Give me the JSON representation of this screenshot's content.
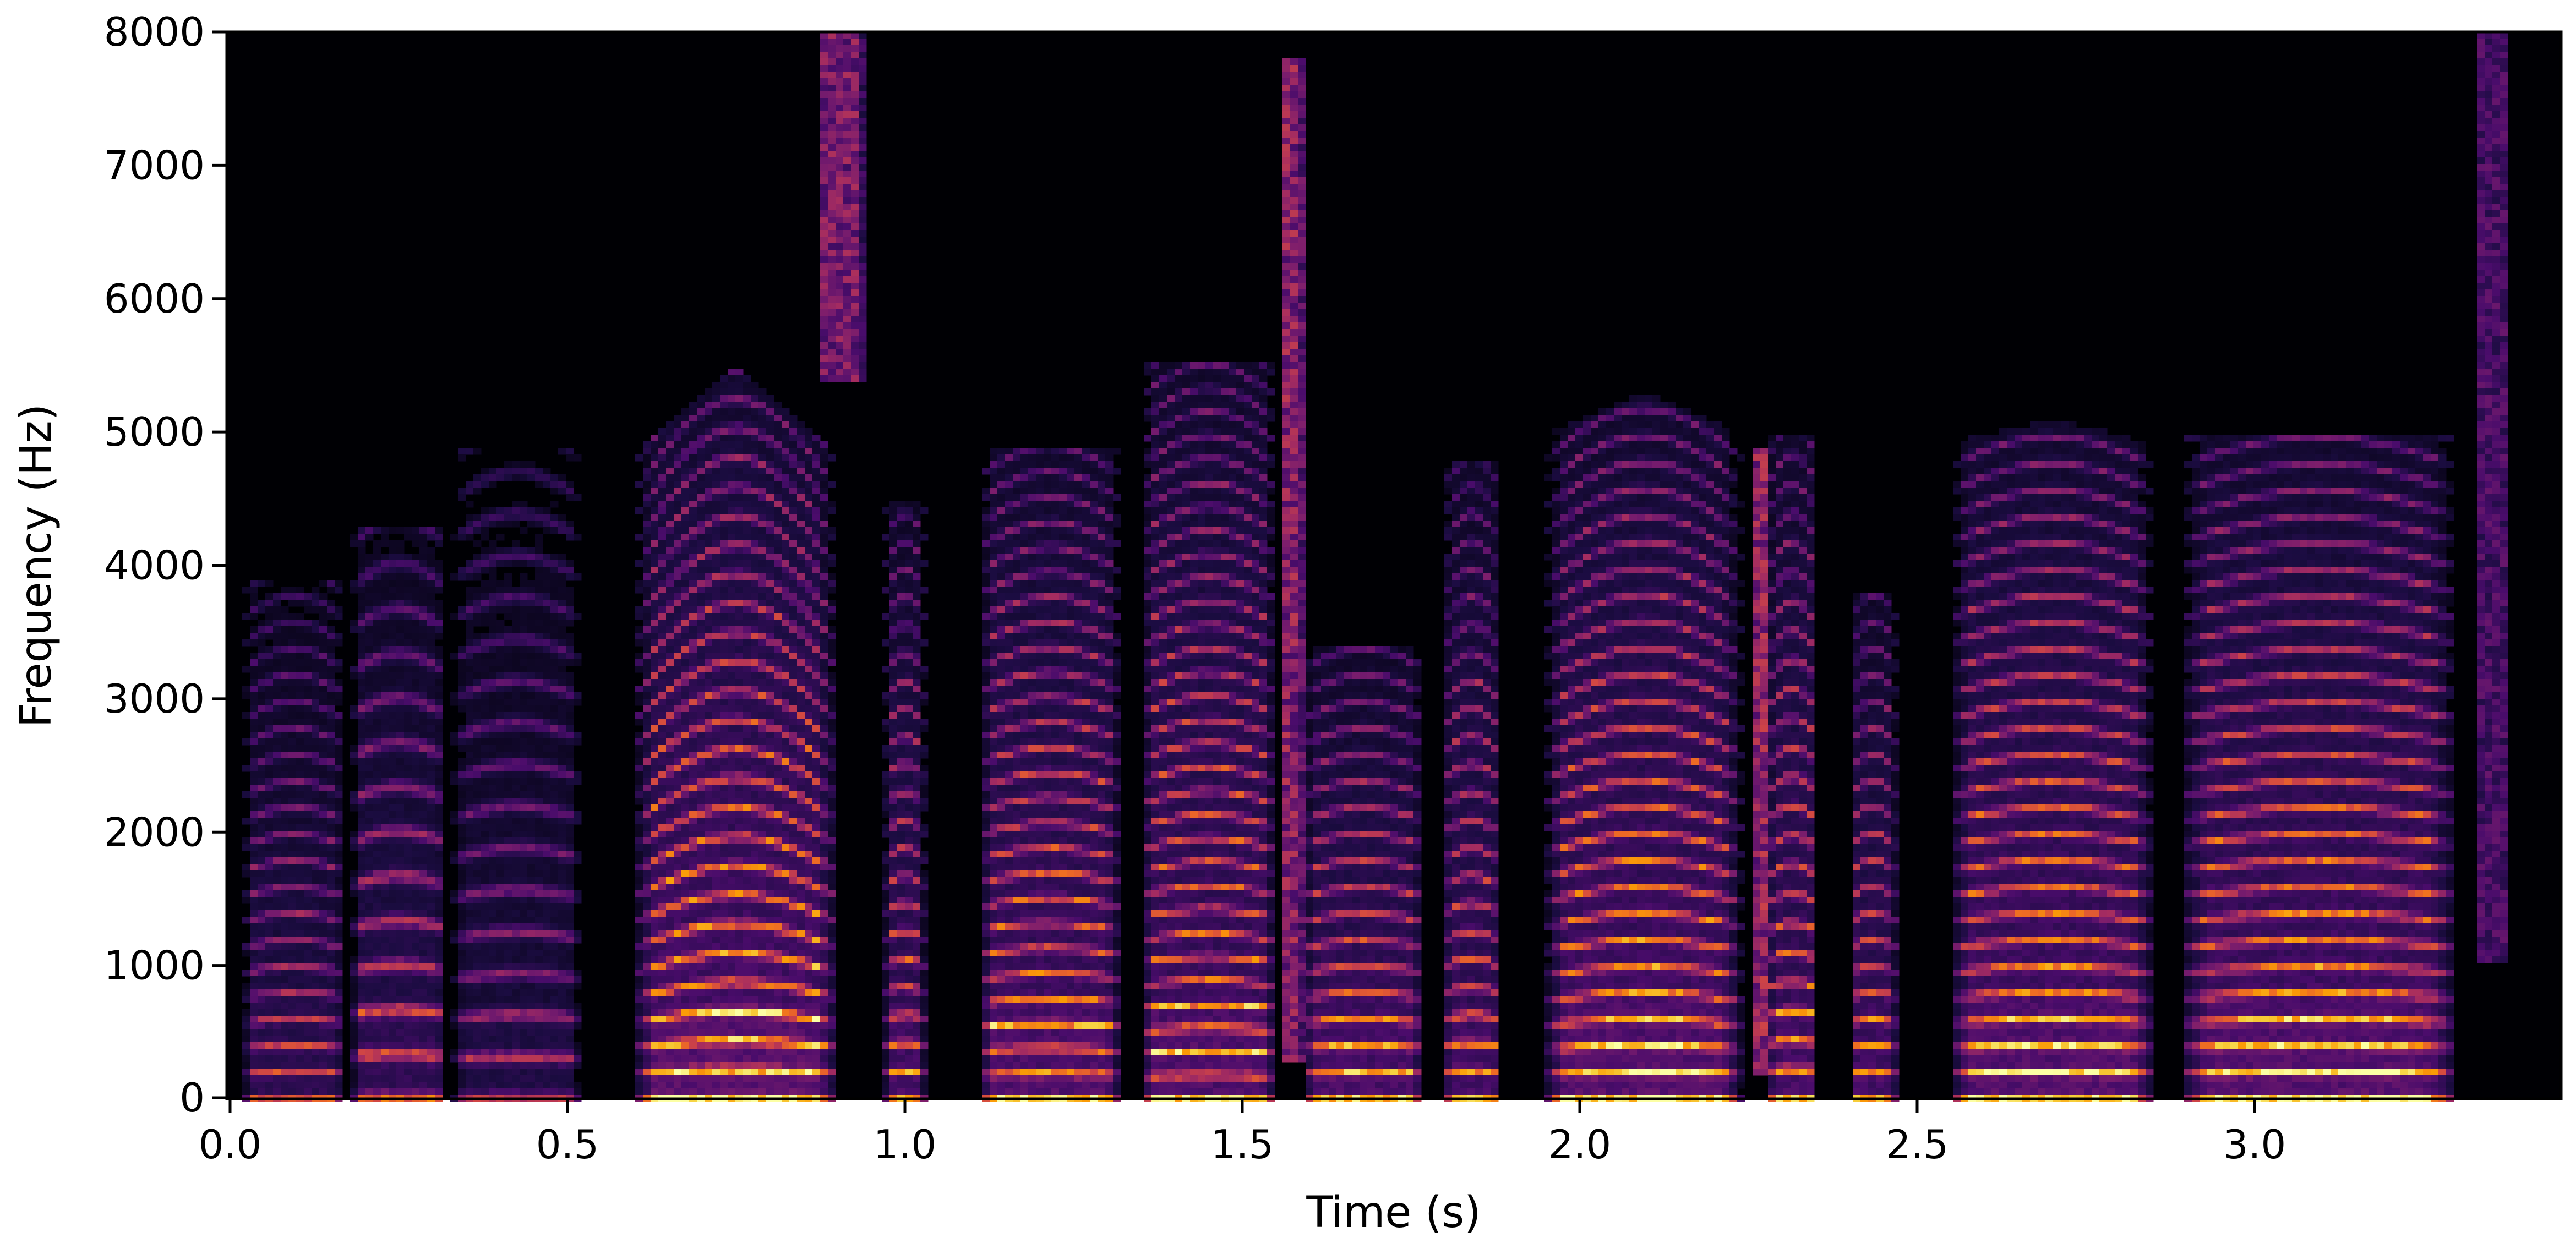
{
  "chart_data": {
    "type": "heatmap",
    "subtype": "spectrogram",
    "title": "",
    "xlabel": "Time (s)",
    "ylabel": "Frequency (Hz)",
    "xlim": [
      0.0,
      3.45
    ],
    "ylim": [
      0,
      8000
    ],
    "x_ticks": [
      0.0,
      0.5,
      1.0,
      1.5,
      2.0,
      2.5,
      3.0
    ],
    "x_tick_labels": [
      "0.0",
      "0.5",
      "1.0",
      "1.5",
      "2.0",
      "2.5",
      "3.0"
    ],
    "y_ticks": [
      0,
      1000,
      2000,
      3000,
      4000,
      5000,
      6000,
      7000,
      8000
    ],
    "y_tick_labels": [
      "0",
      "1000",
      "2000",
      "3000",
      "4000",
      "5000",
      "6000",
      "7000",
      "8000"
    ],
    "colormap": "inferno",
    "colormap_stops": [
      "#000004",
      "#1b0c41",
      "#4a0c6b",
      "#781c6d",
      "#a52c60",
      "#cf4446",
      "#ed6925",
      "#fb9b06",
      "#f7d13d",
      "#fcffa4"
    ],
    "grid": false,
    "legend": null,
    "segments": [
      {
        "start": 0.02,
        "end": 0.17,
        "f0": 190,
        "top": 3600,
        "intensity": 0.55,
        "tilt": 0.0
      },
      {
        "start": 0.18,
        "end": 0.32,
        "f0": 320,
        "top": 4000,
        "intensity": 0.6,
        "tilt": 0.0
      },
      {
        "start": 0.33,
        "end": 0.52,
        "f0": 300,
        "top": 4600,
        "intensity": 0.45,
        "tilt": 0.0
      },
      {
        "start": 0.6,
        "end": 0.9,
        "f0": 190,
        "top": 5200,
        "intensity": 0.95,
        "tilt": 1.0
      },
      {
        "start": 0.87,
        "end": 0.94,
        "f0": 0,
        "top": 8000,
        "bottom": 5400,
        "intensity": 0.55,
        "noise": true
      },
      {
        "start": 0.97,
        "end": 1.03,
        "f0": 200,
        "top": 4200,
        "intensity": 0.75,
        "tilt": 0.0
      },
      {
        "start": 1.11,
        "end": 1.32,
        "f0": 180,
        "top": 4600,
        "intensity": 0.85,
        "tilt": 0.0
      },
      {
        "start": 1.35,
        "end": 1.55,
        "f0": 170,
        "top": 5200,
        "intensity": 0.85,
        "tilt": 0.0
      },
      {
        "start": 1.56,
        "end": 1.59,
        "f0": 0,
        "top": 7800,
        "bottom": 300,
        "intensity": 0.6,
        "noise": true
      },
      {
        "start": 1.59,
        "end": 1.77,
        "f0": 190,
        "top": 3100,
        "intensity": 0.8,
        "tilt": 0.0
      },
      {
        "start": 1.8,
        "end": 1.88,
        "f0": 200,
        "top": 4500,
        "intensity": 0.75,
        "tilt": 0.0
      },
      {
        "start": 1.95,
        "end": 2.24,
        "f0": 185,
        "top": 5000,
        "intensity": 0.9,
        "tilt": 0.5
      },
      {
        "start": 2.26,
        "end": 2.28,
        "f0": 0,
        "top": 4900,
        "bottom": 200,
        "intensity": 0.65,
        "noise": true
      },
      {
        "start": 2.28,
        "end": 2.35,
        "f0": 210,
        "top": 4700,
        "intensity": 0.8,
        "tilt": 0.0
      },
      {
        "start": 2.4,
        "end": 2.47,
        "f0": 190,
        "top": 3500,
        "intensity": 0.75,
        "tilt": 0.0
      },
      {
        "start": 2.55,
        "end": 2.85,
        "f0": 190,
        "top": 4800,
        "intensity": 0.9,
        "tilt": 0.3
      },
      {
        "start": 2.89,
        "end": 3.3,
        "f0": 190,
        "top": 4700,
        "intensity": 0.9,
        "tilt": 0.0
      },
      {
        "start": 3.33,
        "end": 3.38,
        "f0": 0,
        "top": 8000,
        "bottom": 1000,
        "intensity": 0.35,
        "noise": true
      }
    ]
  },
  "colors": {
    "background": "#ffffff",
    "plot_background": "#000004",
    "axis": "#000000"
  }
}
